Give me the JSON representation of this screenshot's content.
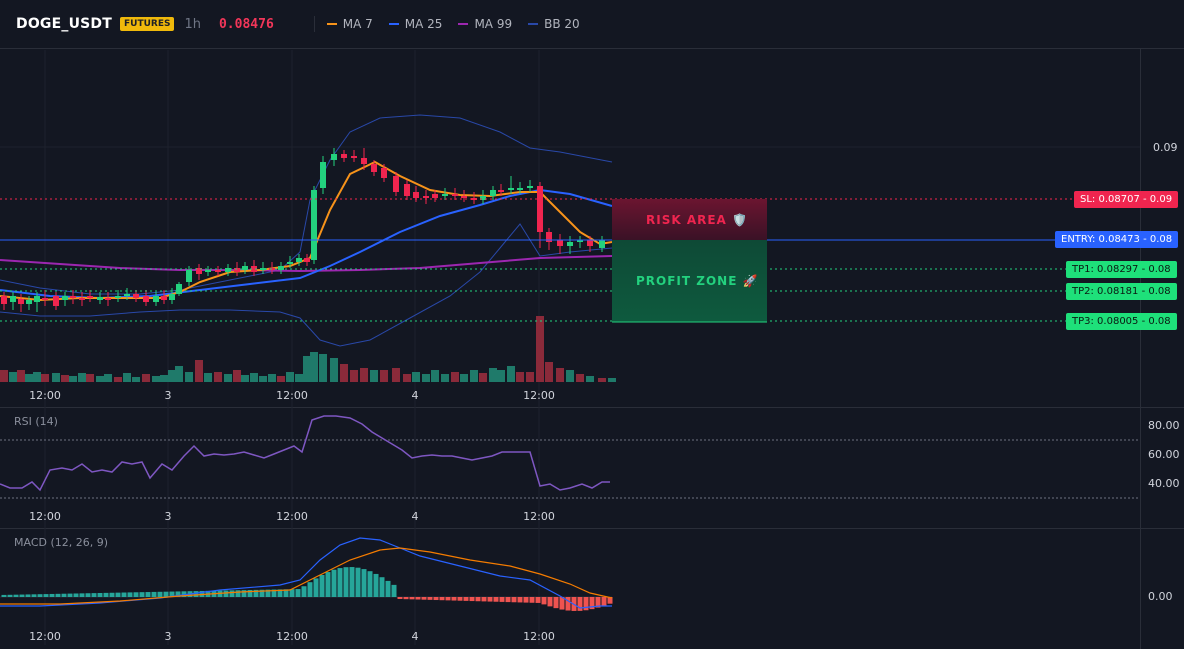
{
  "header": {
    "symbol": "DOGE_USDT",
    "badge": "FUTURES",
    "interval": "1h",
    "price": "0.08476",
    "legend": [
      {
        "label": "MA 7",
        "color": "#f7931a"
      },
      {
        "label": "MA 25",
        "color": "#2962ff"
      },
      {
        "label": "MA 99",
        "color": "#9c27b0"
      },
      {
        "label": "BB 20",
        "color": "#2948a8"
      }
    ]
  },
  "price_axis": {
    "label_009": "0.09"
  },
  "levels": {
    "sl": "SL: 0.08707 - 0.09",
    "entry": "ENTRY: 0.08473 - 0.08",
    "tp1": "TP1: 0.08297 - 0.08",
    "tp2": "TP2: 0.08181 - 0.08",
    "tp3": "TP3: 0.08005 - 0.08"
  },
  "zones": {
    "risk": "RISK AREA 🛡️",
    "profit": "PROFIT ZONE 🚀"
  },
  "time_labels": [
    "12:00",
    "3",
    "12:00",
    "4",
    "12:00"
  ],
  "rsi": {
    "title": "RSI (14)",
    "ticks": [
      "80.00",
      "60.00",
      "40.00"
    ]
  },
  "macd": {
    "title": "MACD (12, 26, 9)",
    "tick": "0.00"
  },
  "colors": {
    "up": "#23d17e",
    "down": "#f0254f",
    "vol_up": "#1f7a6a",
    "vol_down": "#8a2a3a",
    "ma7": "#f7931a",
    "ma25": "#2962ff",
    "ma99": "#9c27b0",
    "bb": "#2948a8",
    "rsi": "#7e57c2"
  }
}
